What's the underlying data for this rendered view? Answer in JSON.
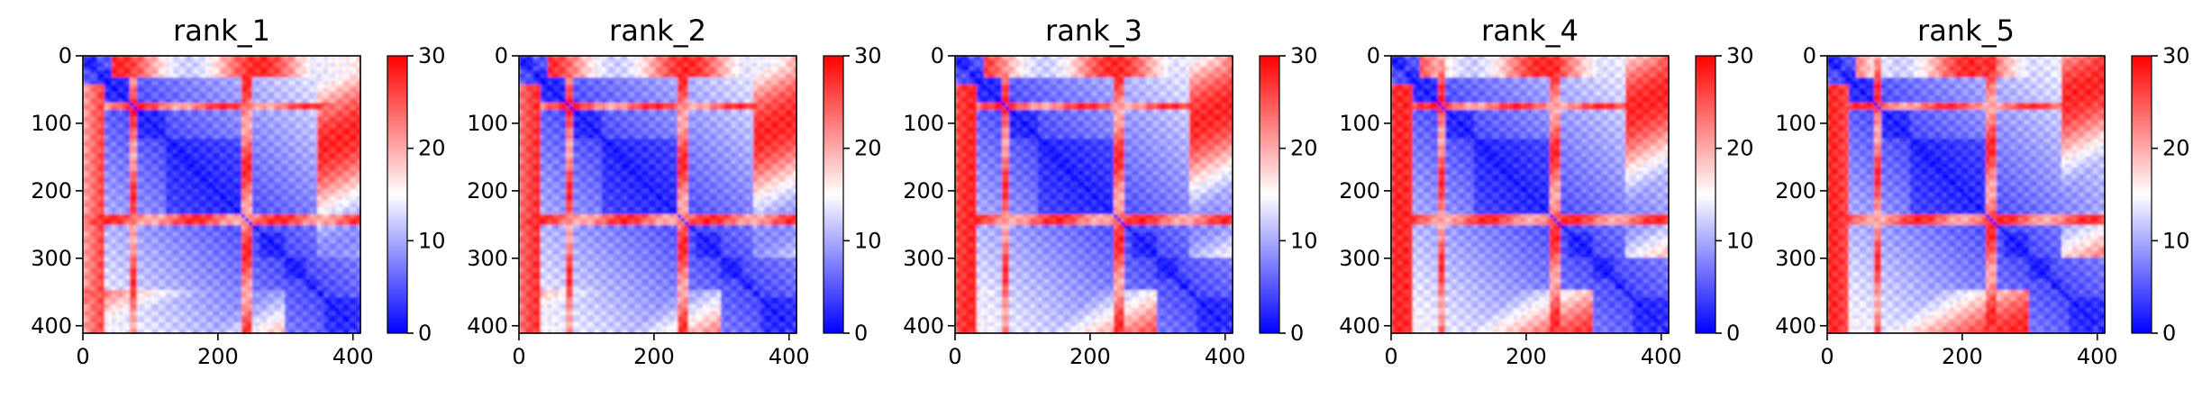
{
  "chart_data": {
    "type": "heatmap",
    "description_colormap": "bwr",
    "colors": {
      "low": "#0000ff",
      "mid": "#ffffff",
      "high": "#ff0000"
    },
    "color_range": [
      0,
      30
    ],
    "colorbar_ticks": [
      "0",
      "10",
      "20",
      "30"
    ],
    "axis_range": [
      0,
      411
    ],
    "y_ticks": [
      "0",
      "100",
      "200",
      "300",
      "400"
    ],
    "x_ticks": [
      "0",
      "200",
      "400"
    ],
    "panels": [
      {
        "title": "rank_1"
      },
      {
        "title": "rank_2"
      },
      {
        "title": "rank_3"
      },
      {
        "title": "rank_4"
      },
      {
        "title": "rank_5"
      }
    ]
  }
}
